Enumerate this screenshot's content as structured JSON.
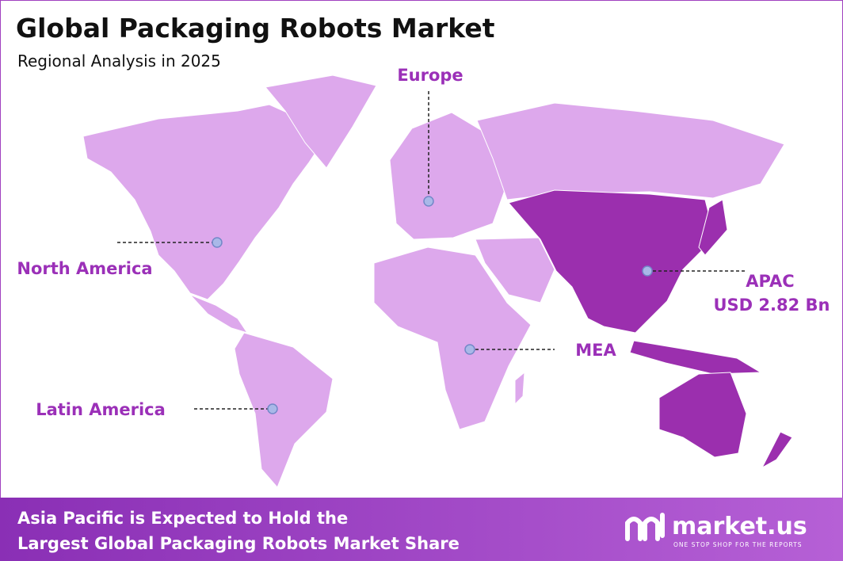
{
  "header": {
    "title": "Global Packaging Robots Market",
    "subtitle": "Regional Analysis in 2025"
  },
  "regions": [
    {
      "label": "Europe"
    },
    {
      "label": "North America"
    },
    {
      "label": "APAC",
      "value": "USD 2.82 Bn"
    },
    {
      "label": "MEA"
    },
    {
      "label": "Latin America"
    }
  ],
  "footer": {
    "lines": [
      "Asia Pacific is Expected to Hold the",
      "Largest Global Packaging Robots Market Share"
    ],
    "brand": "market.us",
    "tagline": "ONE STOP SHOP FOR THE REPORTS"
  }
}
